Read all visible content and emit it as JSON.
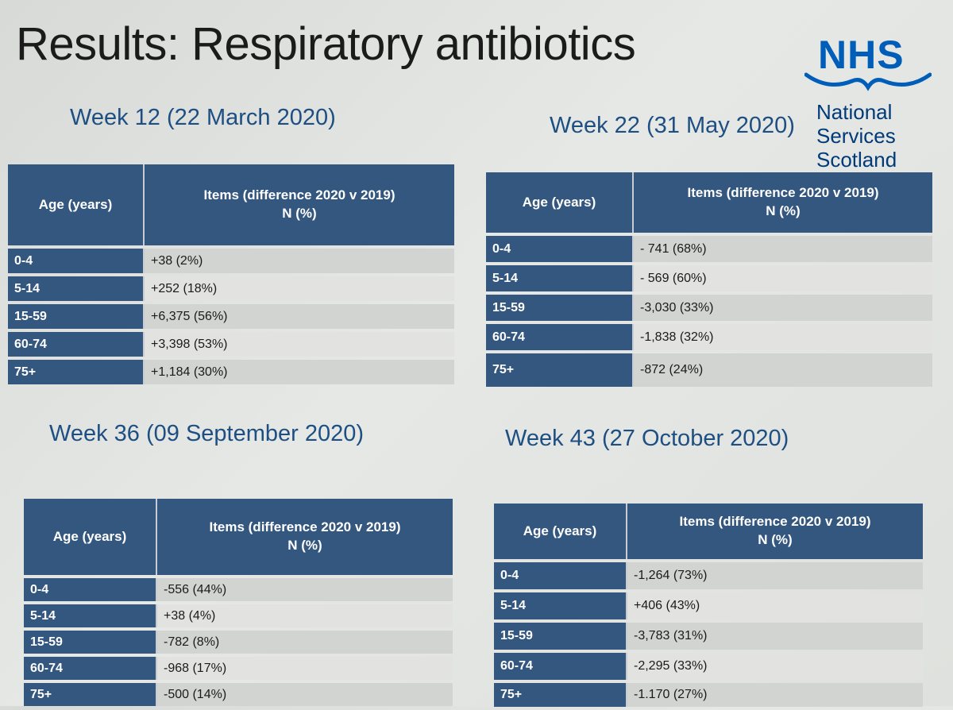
{
  "title": "Results: Respiratory antibiotics",
  "logo": {
    "brand": "NHS",
    "line1": "National",
    "line2": "Services",
    "line3": "Scotland"
  },
  "column_headers": {
    "age": "Age (years)",
    "items_line1": "Items (difference 2020 v 2019)",
    "items_line2": "N (%)"
  },
  "tables": [
    {
      "title": "Week 12 (22 March 2020)",
      "rows": [
        {
          "age": "0-4",
          "value": "+38 (2%)"
        },
        {
          "age": "5-14",
          "value": "+252 (18%)"
        },
        {
          "age": "15-59",
          "value": "+6,375 (56%)"
        },
        {
          "age": "60-74",
          "value": "+3,398 (53%)"
        },
        {
          "age": "75+",
          "value": "+1,184 (30%)"
        }
      ]
    },
    {
      "title": "Week 22 (31 May 2020)",
      "rows": [
        {
          "age": "0-4",
          "value": "- 741 (68%)"
        },
        {
          "age": "5-14",
          "value": "- 569 (60%)"
        },
        {
          "age": "15-59",
          "value": "-3,030 (33%)"
        },
        {
          "age": "60-74",
          "value": "-1,838 (32%)"
        },
        {
          "age": "75+",
          "value": "-872 (24%)"
        }
      ]
    },
    {
      "title": "Week 36 (09 September 2020)",
      "rows": [
        {
          "age": "0-4",
          "value": "-556 (44%)"
        },
        {
          "age": "5-14",
          "value": "+38 (4%)"
        },
        {
          "age": "15-59",
          "value": "-782  (8%)"
        },
        {
          "age": "60-74",
          "value": "-968  (17%)"
        },
        {
          "age": "75+",
          "value": "-500 (14%)"
        }
      ]
    },
    {
      "title": "Week 43 (27 October 2020)",
      "rows": [
        {
          "age": "0-4",
          "value": "-1,264 (73%)"
        },
        {
          "age": "5-14",
          "value": "+406 (43%)"
        },
        {
          "age": "15-59",
          "value": "-3,783 (31%)"
        },
        {
          "age": "60-74",
          "value": "-2,295 (33%)"
        },
        {
          "age": "75+",
          "value": "-1.170 (27%)"
        }
      ]
    }
  ]
}
